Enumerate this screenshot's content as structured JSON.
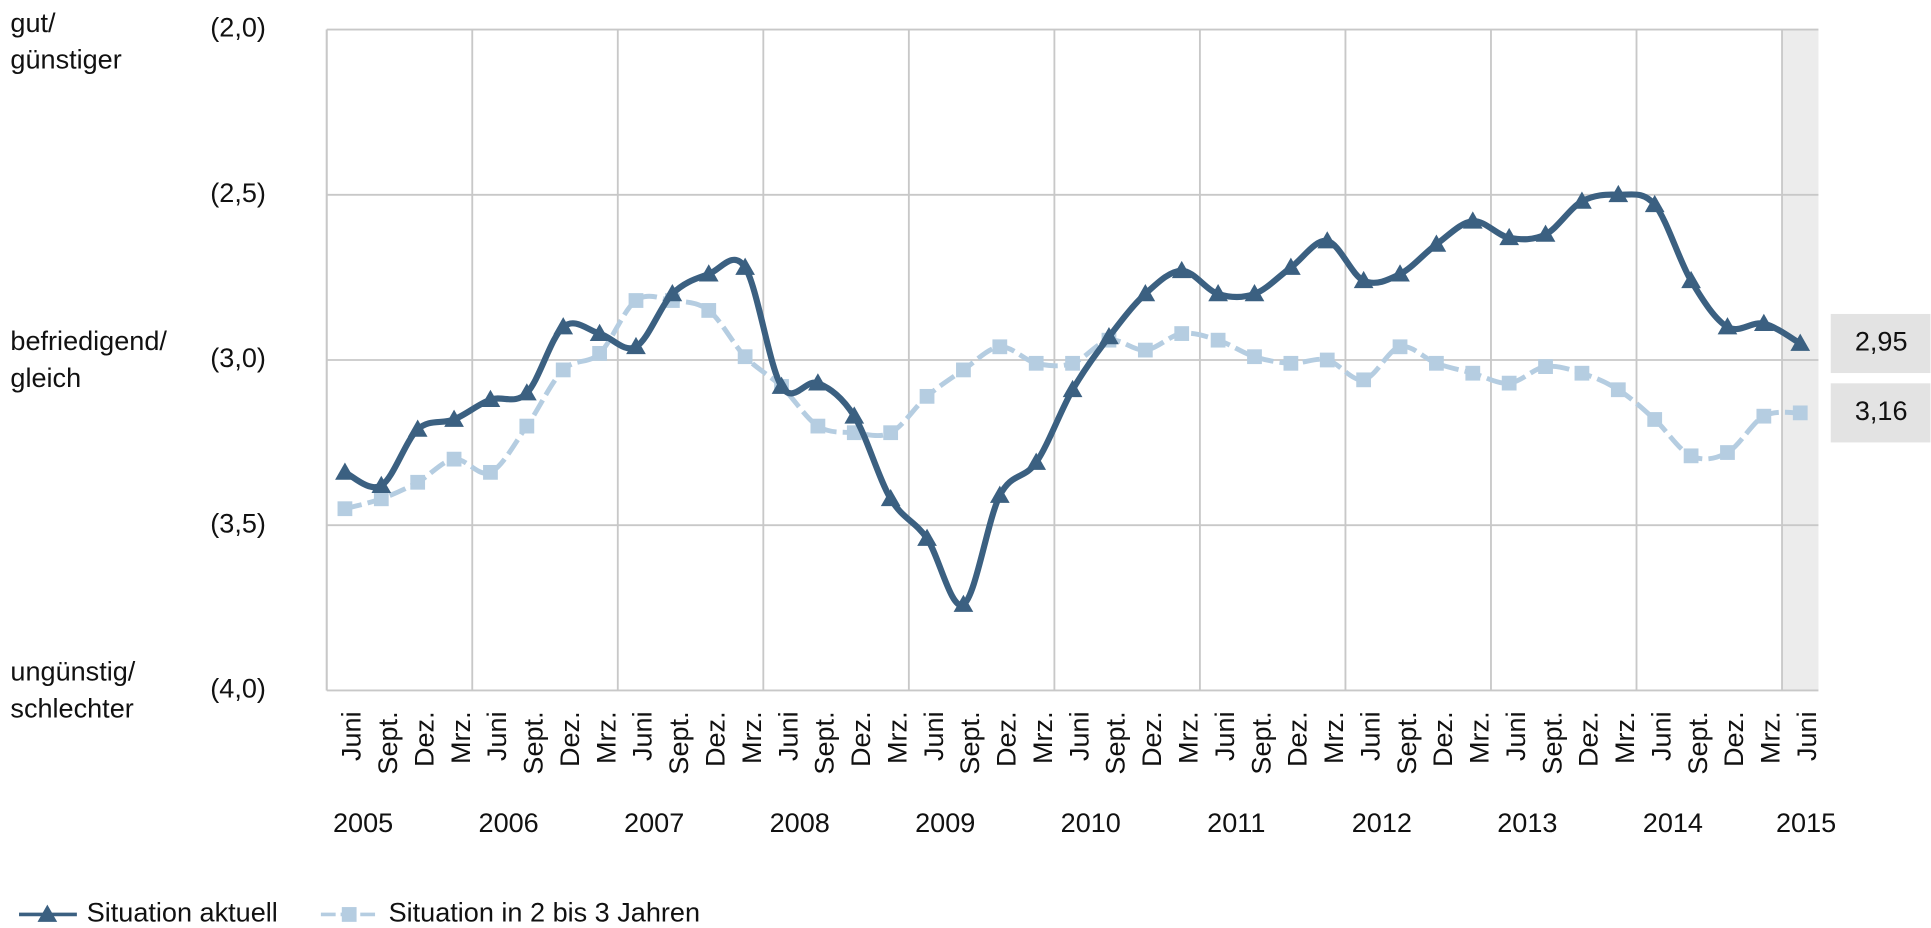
{
  "chart_data": {
    "type": "line",
    "categories": [
      "Juni",
      "Sept.",
      "Dez.",
      "Mrz.",
      "Juni",
      "Sept.",
      "Dez.",
      "Mrz.",
      "Juni",
      "Sept.",
      "Dez.",
      "Mrz.",
      "Juni",
      "Sept.",
      "Dez.",
      "Mrz.",
      "Juni",
      "Sept.",
      "Dez.",
      "Mrz.",
      "Juni",
      "Sept.",
      "Dez.",
      "Mrz.",
      "Juni",
      "Sept.",
      "Dez.",
      "Mrz.",
      "Juni",
      "Sept.",
      "Dez.",
      "Mrz.",
      "Juni",
      "Sept.",
      "Dez.",
      "Mrz.",
      "Juni",
      "Sept.",
      "Dez.",
      "Mrz.",
      "Juni"
    ],
    "years": [
      "2005",
      "2006",
      "2007",
      "2008",
      "2009",
      "2010",
      "2011",
      "2012",
      "2013",
      "2014",
      "2015"
    ],
    "series": [
      {
        "name": "Situation aktuell",
        "color": "#3b6081",
        "marker": "triangle",
        "values": [
          3.34,
          3.38,
          3.21,
          3.18,
          3.12,
          3.1,
          2.9,
          2.92,
          2.96,
          2.8,
          2.74,
          2.72,
          3.08,
          3.07,
          3.17,
          3.42,
          3.54,
          3.74,
          3.41,
          3.31,
          3.09,
          2.93,
          2.8,
          2.73,
          2.8,
          2.8,
          2.72,
          2.64,
          2.76,
          2.74,
          2.65,
          2.58,
          2.63,
          2.62,
          2.52,
          2.5,
          2.53,
          2.76,
          2.9,
          2.89,
          2.95
        ],
        "value_labels": [
          null,
          null,
          null,
          null,
          null,
          null,
          null,
          null,
          null,
          null,
          null,
          null,
          null,
          null,
          null,
          null,
          null,
          null,
          null,
          null,
          null,
          null,
          null,
          null,
          null,
          null,
          null,
          null,
          null,
          null,
          null,
          null,
          null,
          null,
          null,
          null,
          null,
          null,
          null,
          null,
          "2,95"
        ]
      },
      {
        "name": "Situation in 2 bis 3 Jahren",
        "color": "#b5cde1",
        "marker": "square",
        "values": [
          3.45,
          3.42,
          3.37,
          3.3,
          3.34,
          3.2,
          3.03,
          2.98,
          2.82,
          2.82,
          2.85,
          2.99,
          3.08,
          3.2,
          3.22,
          3.22,
          3.11,
          3.03,
          2.96,
          3.01,
          3.01,
          2.94,
          2.97,
          2.92,
          2.94,
          2.99,
          3.01,
          3.0,
          3.06,
          2.96,
          3.01,
          3.04,
          3.07,
          3.02,
          3.04,
          3.09,
          3.18,
          3.29,
          3.28,
          3.17,
          3.16
        ],
        "value_labels": [
          null,
          null,
          null,
          null,
          null,
          null,
          null,
          null,
          null,
          null,
          null,
          null,
          null,
          null,
          null,
          null,
          null,
          null,
          null,
          null,
          null,
          null,
          null,
          null,
          null,
          null,
          null,
          null,
          null,
          null,
          null,
          null,
          null,
          null,
          null,
          null,
          null,
          null,
          null,
          null,
          "3,16"
        ]
      }
    ],
    "ylim": [
      2,
      4
    ],
    "y_inverted": true,
    "yticks": [
      {
        "value": 2,
        "label": "(2,0)"
      },
      {
        "value": 2.5,
        "label": "(2,5)"
      },
      {
        "value": 3,
        "label": "(3,0)"
      },
      {
        "value": 3.5,
        "label": "(3,5)"
      },
      {
        "value": 4,
        "label": "(4,0)"
      }
    ],
    "scale_labels": [
      {
        "value": 2,
        "lines": [
          "gut/",
          "günstiger"
        ]
      },
      {
        "value": 3,
        "lines": [
          "befriedigend/",
          "gleich"
        ]
      },
      {
        "value": 4,
        "lines": [
          "ungünstig/",
          "schlechter"
        ]
      }
    ],
    "grid": true
  }
}
